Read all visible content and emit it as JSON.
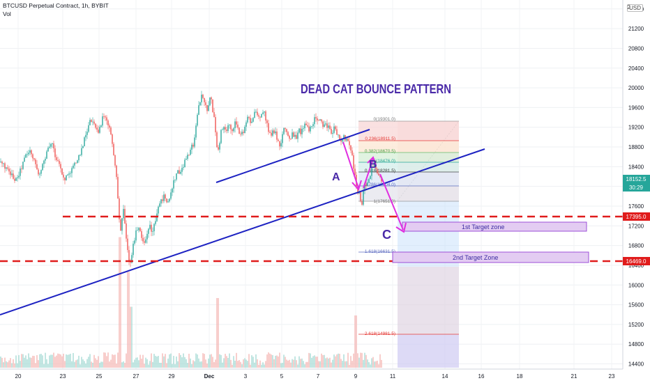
{
  "header": {
    "symbol": "BTCUSD Perpetual Contract, 1h, BYBIT",
    "indicator": "Vol"
  },
  "toolbar": {
    "currency": "USD",
    "mode_glyph": "2"
  },
  "annotation": {
    "title": "DEAD CAT BOUNCE PATTERN",
    "label_a": "A",
    "label_b": "B",
    "label_c": "C",
    "zone1": "1st Target zone",
    "zone2": "2nd Target Zone"
  },
  "colors": {
    "candle_up": "#26a69a",
    "candle_down": "#ef5350",
    "trendline": "#1d22c2",
    "support": "#e01c1c",
    "arrow": "#e02ee0",
    "title": "#4a2aa8",
    "grid": "#eef0f3",
    "price_tag": "#26a69a"
  },
  "chart_data": {
    "type": "candlestick",
    "instrument": "BTCUSD Perpetual Contract",
    "interval": "1h",
    "exchange": "BYBIT",
    "y_ticks": [
      21600,
      21200,
      20800,
      20400,
      20000,
      19600,
      19200,
      18800,
      18400,
      18000,
      17600,
      17200,
      16800,
      16400,
      16000,
      15600,
      15200,
      14800,
      14400
    ],
    "x_ticks": [
      "20",
      "23",
      "25",
      "27",
      "29",
      "Dec",
      "3",
      "5",
      "7",
      "9",
      "11",
      "14",
      "16",
      "18",
      "21",
      "23"
    ],
    "ylim": [
      14300,
      21800
    ],
    "last_price": "18152.5",
    "countdown": "30:29",
    "support_levels": [
      {
        "label": "17395.0",
        "value": 17395
      },
      {
        "label": "16469.0",
        "value": 16469
      }
    ],
    "fibonacci": [
      {
        "ratio": "0",
        "price": "19301.0"
      },
      {
        "ratio": "0.236",
        "price": "18911.5"
      },
      {
        "ratio": "0.382",
        "price": "18670.5"
      },
      {
        "ratio": "0.5",
        "price": "18476.0"
      },
      {
        "ratio": "0.618",
        "price": "18281.5"
      },
      {
        "ratio": "0.786",
        "price": "18004.0"
      },
      {
        "ratio": "1",
        "price": "17651.0"
      },
      {
        "ratio": "1.618",
        "price": "16631.5"
      },
      {
        "ratio": "2.618",
        "price": "14981.5"
      }
    ],
    "price_path": [
      [
        0,
        18500
      ],
      [
        8,
        18380
      ],
      [
        16,
        18220
      ],
      [
        24,
        18120
      ],
      [
        30,
        18350
      ],
      [
        36,
        18600
      ],
      [
        44,
        18720
      ],
      [
        50,
        18480
      ],
      [
        56,
        18250
      ],
      [
        62,
        18450
      ],
      [
        68,
        18700
      ],
      [
        74,
        18900
      ],
      [
        80,
        18600
      ],
      [
        86,
        18400
      ],
      [
        92,
        18150
      ],
      [
        98,
        18250
      ],
      [
        104,
        18380
      ],
      [
        110,
        18500
      ],
      [
        116,
        18700
      ],
      [
        122,
        19000
      ],
      [
        128,
        19300
      ],
      [
        134,
        19350
      ],
      [
        138,
        19200
      ],
      [
        142,
        19100
      ],
      [
        146,
        19350
      ],
      [
        150,
        19400
      ],
      [
        156,
        19200
      ],
      [
        160,
        18950
      ],
      [
        164,
        18600
      ],
      [
        168,
        18000
      ],
      [
        170,
        17600
      ],
      [
        172,
        17000
      ],
      [
        174,
        17200
      ],
      [
        177,
        17500
      ],
      [
        180,
        17050
      ],
      [
        183,
        16650
      ],
      [
        186,
        16450
      ],
      [
        190,
        16700
      ],
      [
        194,
        17050
      ],
      [
        198,
        17200
      ],
      [
        202,
        17050
      ],
      [
        206,
        16800
      ],
      [
        210,
        16950
      ],
      [
        214,
        17200
      ],
      [
        218,
        17050
      ],
      [
        222,
        17300
      ],
      [
        226,
        17500
      ],
      [
        230,
        17650
      ],
      [
        234,
        17800
      ],
      [
        238,
        17750
      ],
      [
        242,
        17650
      ],
      [
        246,
        17900
      ],
      [
        250,
        18150
      ],
      [
        254,
        18300
      ],
      [
        258,
        18250
      ],
      [
        262,
        18400
      ],
      [
        266,
        18550
      ],
      [
        270,
        18600
      ],
      [
        274,
        18750
      ],
      [
        278,
        18900
      ],
      [
        282,
        19350
      ],
      [
        286,
        19700
      ],
      [
        290,
        19900
      ],
      [
        294,
        19650
      ],
      [
        298,
        19500
      ],
      [
        301,
        19850
      ],
      [
        304,
        19650
      ],
      [
        308,
        19300
      ],
      [
        312,
        18600
      ],
      [
        316,
        19050
      ],
      [
        320,
        19200
      ],
      [
        324,
        19100
      ],
      [
        328,
        19250
      ],
      [
        332,
        19050
      ],
      [
        336,
        19300
      ],
      [
        340,
        19200
      ],
      [
        344,
        19050
      ],
      [
        348,
        19100
      ],
      [
        352,
        19250
      ],
      [
        356,
        19450
      ],
      [
        360,
        19300
      ],
      [
        364,
        19450
      ],
      [
        368,
        19500
      ],
      [
        372,
        19350
      ],
      [
        376,
        19500
      ],
      [
        380,
        19450
      ],
      [
        384,
        19150
      ],
      [
        388,
        19000
      ],
      [
        392,
        19150
      ],
      [
        396,
        19050
      ],
      [
        400,
        18800
      ],
      [
        404,
        18950
      ],
      [
        408,
        19200
      ],
      [
        412,
        19050
      ],
      [
        416,
        18950
      ],
      [
        420,
        19100
      ],
      [
        424,
        18950
      ],
      [
        428,
        19150
      ],
      [
        432,
        19050
      ],
      [
        436,
        19300
      ],
      [
        440,
        19200
      ],
      [
        444,
        19150
      ],
      [
        448,
        19250
      ],
      [
        452,
        19400
      ],
      [
        456,
        19350
      ],
      [
        460,
        19300
      ],
      [
        464,
        19200
      ],
      [
        468,
        19250
      ],
      [
        472,
        19150
      ],
      [
        476,
        19100
      ],
      [
        480,
        19250
      ],
      [
        484,
        19050
      ],
      [
        488,
        18950
      ],
      [
        492,
        19000
      ],
      [
        496,
        18950
      ],
      [
        500,
        18900
      ],
      [
        504,
        18700
      ],
      [
        508,
        18300
      ],
      [
        512,
        17950
      ],
      [
        516,
        17800
      ],
      [
        519,
        17650
      ],
      [
        522,
        18000
      ],
      [
        526,
        18050
      ],
      [
        530,
        18200
      ],
      [
        534,
        18450
      ],
      [
        538,
        18400
      ],
      [
        542,
        18200
      ],
      [
        546,
        18120
      ],
      [
        548,
        18150
      ]
    ],
    "volume_spikes": [
      {
        "x": 172,
        "height": 0.75
      },
      {
        "x": 184,
        "height": 0.55
      },
      {
        "x": 188,
        "height": 0.35
      },
      {
        "x": 312,
        "height": 0.4
      },
      {
        "x": 510,
        "height": 0.3
      }
    ]
  }
}
